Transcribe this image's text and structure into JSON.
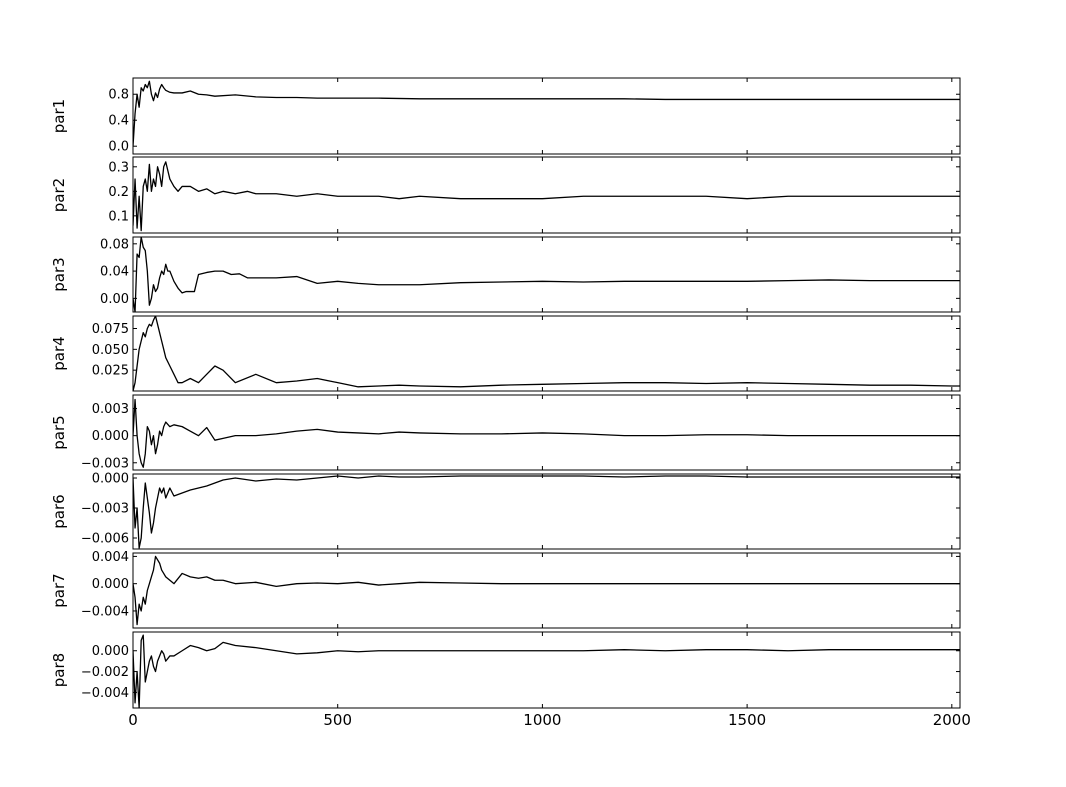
{
  "chart_data": {
    "type": "line",
    "description_of_layout": "stacked",
    "x_ticks": [
      0,
      500,
      1000,
      1500,
      2000
    ],
    "xlim": [
      0,
      2020
    ],
    "colors": {
      "line": "#000000",
      "frame": "#000000",
      "background": "#ffffff"
    },
    "grid": false,
    "panels": [
      {
        "ylabel": "par1",
        "ylim": [
          -0.12,
          1.05
        ],
        "y_ticks": [
          0.0,
          0.4,
          0.8
        ],
        "y_tick_labels": [
          "0.0",
          "0.4",
          "0.8"
        ],
        "series": {
          "x": [
            0,
            5,
            10,
            15,
            20,
            25,
            30,
            35,
            40,
            45,
            50,
            55,
            60,
            65,
            70,
            75,
            80,
            90,
            100,
            120,
            140,
            160,
            180,
            200,
            250,
            300,
            350,
            400,
            450,
            500,
            600,
            700,
            800,
            900,
            1000,
            1100,
            1200,
            1300,
            1400,
            1500,
            1600,
            1700,
            1800,
            1900,
            2000,
            2020
          ],
          "y": [
            0.0,
            0.5,
            0.8,
            0.6,
            0.9,
            0.85,
            0.95,
            0.9,
            1.0,
            0.8,
            0.7,
            0.82,
            0.75,
            0.88,
            0.95,
            0.9,
            0.86,
            0.83,
            0.82,
            0.82,
            0.85,
            0.8,
            0.79,
            0.77,
            0.79,
            0.76,
            0.75,
            0.75,
            0.74,
            0.74,
            0.74,
            0.73,
            0.73,
            0.73,
            0.73,
            0.73,
            0.73,
            0.72,
            0.72,
            0.72,
            0.72,
            0.72,
            0.72,
            0.72,
            0.72,
            0.72
          ]
        }
      },
      {
        "ylabel": "par2",
        "ylim": [
          0.03,
          0.34
        ],
        "y_ticks": [
          0.1,
          0.2,
          0.3
        ],
        "y_tick_labels": [
          "0.1",
          "0.2",
          "0.3"
        ],
        "series": {
          "x": [
            0,
            5,
            10,
            15,
            20,
            25,
            30,
            35,
            40,
            45,
            50,
            55,
            60,
            65,
            70,
            75,
            80,
            90,
            100,
            110,
            120,
            140,
            160,
            180,
            200,
            220,
            250,
            280,
            300,
            350,
            400,
            450,
            500,
            550,
            600,
            650,
            700,
            800,
            900,
            1000,
            1100,
            1200,
            1300,
            1400,
            1500,
            1600,
            1700,
            1800,
            1900,
            2000,
            2020
          ],
          "y": [
            0.06,
            0.25,
            0.05,
            0.18,
            0.04,
            0.22,
            0.25,
            0.2,
            0.31,
            0.2,
            0.25,
            0.22,
            0.3,
            0.27,
            0.22,
            0.3,
            0.32,
            0.25,
            0.22,
            0.2,
            0.22,
            0.22,
            0.2,
            0.21,
            0.19,
            0.2,
            0.19,
            0.2,
            0.19,
            0.19,
            0.18,
            0.19,
            0.18,
            0.18,
            0.18,
            0.17,
            0.18,
            0.17,
            0.17,
            0.17,
            0.18,
            0.18,
            0.18,
            0.18,
            0.17,
            0.18,
            0.18,
            0.18,
            0.18,
            0.18,
            0.18
          ]
        }
      },
      {
        "ylabel": "par3",
        "ylim": [
          -0.02,
          0.09
        ],
        "y_ticks": [
          0.0,
          0.04,
          0.08
        ],
        "y_tick_labels": [
          "0.00",
          "0.04",
          "0.08"
        ],
        "series": {
          "x": [
            0,
            5,
            10,
            15,
            20,
            25,
            30,
            35,
            40,
            45,
            50,
            55,
            60,
            65,
            70,
            75,
            80,
            85,
            90,
            100,
            110,
            120,
            130,
            140,
            150,
            160,
            180,
            200,
            220,
            240,
            260,
            280,
            300,
            350,
            400,
            450,
            500,
            550,
            600,
            650,
            700,
            800,
            900,
            1000,
            1100,
            1200,
            1300,
            1400,
            1500,
            1600,
            1700,
            1800,
            1900,
            2000,
            2020
          ],
          "y": [
            0.0,
            -0.02,
            0.065,
            0.06,
            0.09,
            0.075,
            0.07,
            0.04,
            -0.01,
            0.0,
            0.02,
            0.01,
            0.015,
            0.03,
            0.04,
            0.035,
            0.05,
            0.04,
            0.04,
            0.025,
            0.015,
            0.008,
            0.01,
            0.01,
            0.01,
            0.035,
            0.038,
            0.04,
            0.04,
            0.035,
            0.036,
            0.03,
            0.03,
            0.03,
            0.032,
            0.022,
            0.025,
            0.022,
            0.02,
            0.02,
            0.02,
            0.023,
            0.024,
            0.025,
            0.024,
            0.025,
            0.025,
            0.025,
            0.025,
            0.026,
            0.027,
            0.026,
            0.026,
            0.026,
            0.026
          ]
        }
      },
      {
        "ylabel": "par4",
        "ylim": [
          0.0,
          0.09
        ],
        "y_ticks": [
          0.025,
          0.05,
          0.075
        ],
        "y_tick_labels": [
          "0.025",
          "0.050",
          "0.075"
        ],
        "series": {
          "x": [
            0,
            5,
            10,
            15,
            20,
            25,
            30,
            35,
            40,
            45,
            50,
            55,
            60,
            65,
            70,
            75,
            80,
            90,
            100,
            110,
            120,
            140,
            160,
            180,
            200,
            220,
            250,
            300,
            350,
            400,
            450,
            500,
            550,
            600,
            650,
            700,
            800,
            900,
            1000,
            1100,
            1200,
            1300,
            1400,
            1500,
            1600,
            1700,
            1800,
            1900,
            2000,
            2020
          ],
          "y": [
            0.0,
            0.01,
            0.03,
            0.05,
            0.06,
            0.07,
            0.065,
            0.075,
            0.08,
            0.078,
            0.085,
            0.09,
            0.08,
            0.07,
            0.06,
            0.05,
            0.04,
            0.03,
            0.02,
            0.01,
            0.01,
            0.015,
            0.01,
            0.02,
            0.03,
            0.025,
            0.01,
            0.02,
            0.01,
            0.012,
            0.015,
            0.01,
            0.005,
            0.006,
            0.007,
            0.006,
            0.005,
            0.007,
            0.008,
            0.009,
            0.01,
            0.01,
            0.009,
            0.01,
            0.009,
            0.008,
            0.007,
            0.007,
            0.006,
            0.006
          ]
        }
      },
      {
        "ylabel": "par5",
        "ylim": [
          -0.0038,
          0.0045
        ],
        "y_ticks": [
          -0.003,
          0.0,
          0.003
        ],
        "y_tick_labels": [
          "-0.003",
          "0.000",
          "0.003"
        ],
        "series": {
          "x": [
            0,
            5,
            10,
            15,
            20,
            25,
            30,
            35,
            40,
            45,
            50,
            55,
            60,
            65,
            70,
            75,
            80,
            90,
            100,
            120,
            140,
            160,
            180,
            200,
            220,
            250,
            300,
            350,
            400,
            450,
            500,
            550,
            600,
            650,
            700,
            800,
            900,
            1000,
            1100,
            1200,
            1300,
            1400,
            1500,
            1600,
            1700,
            1800,
            1900,
            2000,
            2020
          ],
          "y": [
            0.0,
            0.004,
            0.0,
            -0.002,
            -0.003,
            -0.0035,
            -0.002,
            0.001,
            0.0005,
            -0.001,
            0.0,
            -0.002,
            -0.001,
            0.0005,
            0.0,
            0.001,
            0.0015,
            0.001,
            0.0012,
            0.001,
            0.0005,
            0.0,
            0.0009,
            -0.0005,
            -0.0003,
            0.0,
            0.0,
            0.0002,
            0.0005,
            0.0007,
            0.0004,
            0.0003,
            0.0002,
            0.0004,
            0.0003,
            0.0002,
            0.0002,
            0.0003,
            0.0002,
            0.0,
            0.0,
            0.0001,
            0.0001,
            0.0,
            0.0,
            0.0,
            0.0,
            0.0,
            0.0
          ]
        }
      },
      {
        "ylabel": "par6",
        "ylim": [
          -0.0071,
          0.0004
        ],
        "y_ticks": [
          -0.006,
          -0.003,
          0.0
        ],
        "y_tick_labels": [
          "-0.006",
          "-0.003",
          "0.000"
        ],
        "series": {
          "x": [
            0,
            5,
            10,
            15,
            20,
            25,
            30,
            35,
            40,
            45,
            50,
            55,
            60,
            65,
            70,
            75,
            80,
            90,
            100,
            120,
            140,
            160,
            180,
            200,
            220,
            250,
            300,
            350,
            400,
            450,
            500,
            550,
            600,
            650,
            700,
            800,
            900,
            1000,
            1100,
            1200,
            1300,
            1400,
            1500,
            1600,
            1700,
            1800,
            1900,
            2000,
            2020
          ],
          "y": [
            0.0,
            -0.005,
            -0.003,
            -0.007,
            -0.006,
            -0.003,
            -0.0005,
            -0.002,
            -0.0035,
            -0.0055,
            -0.0045,
            -0.003,
            -0.002,
            -0.001,
            -0.0015,
            -0.001,
            -0.002,
            -0.001,
            -0.0018,
            -0.0015,
            -0.0012,
            -0.001,
            -0.0008,
            -0.0005,
            -0.0002,
            0.0,
            -0.0003,
            -0.0001,
            -0.0002,
            0.0,
            0.0002,
            0.0,
            0.0002,
            0.0001,
            0.0001,
            0.0002,
            0.0002,
            0.0002,
            0.0002,
            0.0001,
            0.0002,
            0.0002,
            0.0001,
            0.0001,
            0.0001,
            0.0001,
            0.0001,
            0.0001,
            0.0001
          ]
        }
      },
      {
        "ylabel": "par7",
        "ylim": [
          -0.0065,
          0.0045
        ],
        "y_ticks": [
          -0.004,
          0.0,
          0.004
        ],
        "y_tick_labels": [
          "-0.004",
          "0.000",
          "0.004"
        ],
        "series": {
          "x": [
            0,
            5,
            10,
            15,
            20,
            25,
            30,
            35,
            40,
            45,
            50,
            55,
            60,
            65,
            70,
            75,
            80,
            90,
            100,
            120,
            140,
            160,
            180,
            200,
            220,
            250,
            300,
            350,
            400,
            450,
            500,
            550,
            600,
            650,
            700,
            800,
            900,
            1000,
            1100,
            1200,
            1300,
            1400,
            1500,
            1600,
            1700,
            1800,
            1900,
            2000,
            2020
          ],
          "y": [
            0.0,
            -0.002,
            -0.006,
            -0.003,
            -0.004,
            -0.002,
            -0.003,
            -0.001,
            0.0,
            0.001,
            0.002,
            0.004,
            0.0035,
            0.003,
            0.002,
            0.0015,
            0.001,
            0.0005,
            0.0,
            0.0015,
            0.001,
            0.0008,
            0.001,
            0.0005,
            0.0005,
            0.0,
            0.0002,
            -0.0004,
            0.0,
            0.0001,
            0.0,
            0.0002,
            -0.0002,
            0.0,
            0.0002,
            0.0001,
            0.0,
            0.0,
            0.0,
            0.0,
            0.0,
            0.0,
            0.0,
            0.0,
            0.0,
            0.0,
            0.0,
            0.0,
            0.0
          ]
        }
      },
      {
        "ylabel": "par8",
        "ylim": [
          -0.0055,
          0.0018
        ],
        "y_ticks": [
          -0.004,
          -0.002,
          0.0
        ],
        "y_tick_labels": [
          "-0.004",
          "-0.002",
          "0.000"
        ],
        "series": {
          "x": [
            0,
            5,
            10,
            15,
            20,
            25,
            30,
            35,
            40,
            45,
            50,
            55,
            60,
            65,
            70,
            75,
            80,
            90,
            100,
            120,
            140,
            160,
            180,
            200,
            220,
            250,
            300,
            350,
            400,
            450,
            500,
            550,
            600,
            650,
            700,
            800,
            900,
            1000,
            1100,
            1200,
            1300,
            1400,
            1500,
            1600,
            1700,
            1800,
            1900,
            2000,
            2020
          ],
          "y": [
            0.0,
            -0.005,
            -0.002,
            -0.0055,
            0.001,
            0.0015,
            -0.003,
            -0.002,
            -0.001,
            -0.0005,
            -0.0015,
            -0.002,
            -0.001,
            -0.0005,
            0.0,
            -0.0003,
            -0.001,
            -0.0005,
            -0.0005,
            0.0,
            0.0005,
            0.0003,
            0.0,
            0.0002,
            0.0008,
            0.0005,
            0.0003,
            0.0,
            -0.0003,
            -0.0002,
            0.0,
            -0.0001,
            0.0,
            0.0,
            0.0,
            0.0,
            0.0,
            0.0,
            0.0,
            0.0001,
            0.0,
            0.0001,
            0.0001,
            0.0,
            0.0001,
            0.0001,
            0.0001,
            0.0001,
            0.0001
          ]
        }
      }
    ]
  }
}
